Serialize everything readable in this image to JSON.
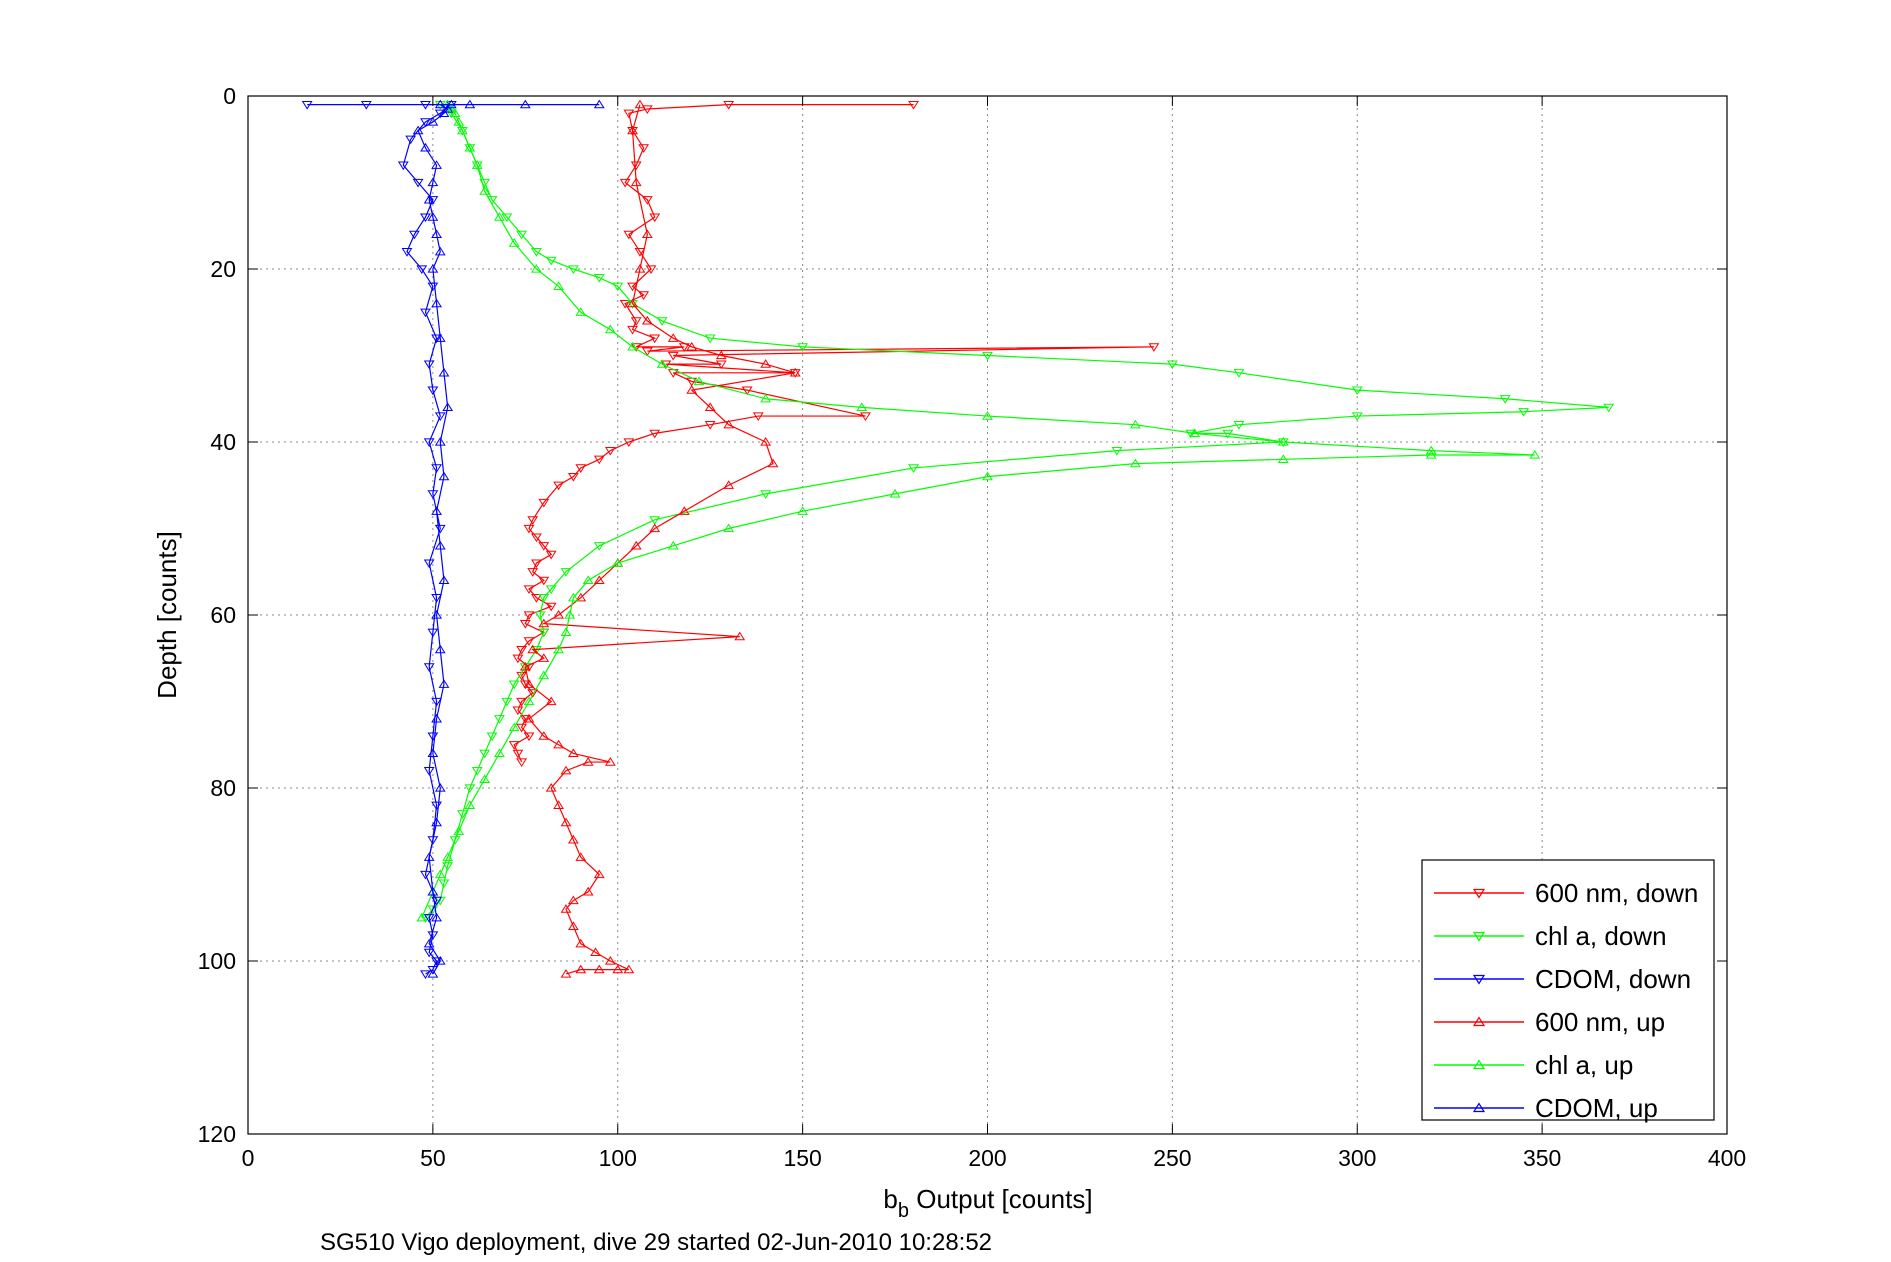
{
  "chart_data": {
    "type": "line",
    "title": "",
    "xlabel": "b",
    "xlabel_sub": "b",
    "xlabel_rest": " Output [counts]",
    "ylabel": "Depth [counts]",
    "caption": "SG510 Vigo deployment, dive 29 started 02-Jun-2010 10:28:52",
    "xlim": [
      0,
      400
    ],
    "ylim": [
      0,
      120
    ],
    "y_reversed": true,
    "grid": true,
    "legend_position": "bottom-right",
    "xticks": [
      "0",
      "50",
      "100",
      "150",
      "200",
      "250",
      "300",
      "350",
      "400"
    ],
    "yticks": [
      "0",
      "20",
      "40",
      "60",
      "80",
      "100",
      "120"
    ],
    "series": [
      {
        "name": "600 nm, down",
        "color": "#ff0000",
        "marker": "triangle-down",
        "x": [
          180,
          130,
          108,
          103,
          104,
          107,
          105,
          102,
          108,
          110,
          103,
          106,
          109,
          104,
          107,
          102,
          105,
          104,
          110,
          105,
          118,
          108,
          245,
          115,
          128,
          113,
          148,
          115,
          120,
          135,
          167,
          138,
          125,
          110,
          103,
          98,
          95,
          90,
          88,
          84,
          80,
          77,
          76,
          78,
          80,
          82,
          78,
          77,
          80,
          76,
          78,
          82,
          76,
          75,
          80,
          76,
          74,
          73,
          76,
          74,
          75,
          77,
          74,
          73,
          75,
          74,
          76,
          72,
          73,
          74
        ],
        "y": [
          1,
          1,
          1.5,
          2,
          4,
          6,
          8,
          10,
          12,
          14,
          16,
          18,
          20,
          22,
          23,
          24,
          26,
          27,
          28,
          29,
          29,
          29.5,
          29,
          30,
          31,
          31,
          32,
          32,
          33,
          34,
          37,
          37,
          38,
          39,
          40,
          41,
          42,
          43,
          44,
          45,
          47,
          49,
          50,
          51,
          52,
          53,
          54,
          55,
          56,
          57,
          58,
          59,
          60,
          61,
          62,
          63,
          64,
          65,
          66,
          67,
          68,
          69,
          70,
          71,
          72,
          73,
          74,
          75,
          76,
          77
        ]
      },
      {
        "name": "chl a, down",
        "color": "#00ff00",
        "marker": "triangle-down",
        "x": [
          52,
          55,
          58,
          60,
          62,
          64,
          66,
          70,
          74,
          78,
          82,
          88,
          95,
          100,
          104,
          112,
          125,
          150,
          200,
          250,
          268,
          300,
          340,
          368,
          345,
          300,
          268,
          255,
          265,
          280,
          235,
          180,
          140,
          110,
          95,
          86,
          82,
          80,
          79,
          80,
          78,
          75,
          72,
          70,
          68,
          66,
          64,
          62,
          60,
          58,
          56,
          54,
          53,
          52,
          50,
          48
        ],
        "y": [
          1,
          2,
          4,
          6,
          8,
          10,
          12,
          14,
          16,
          18,
          19,
          20,
          21,
          22,
          24,
          26,
          28,
          29,
          30,
          31,
          32,
          34,
          35,
          36,
          36.5,
          37,
          38,
          39,
          39,
          40,
          41,
          43,
          46,
          49,
          52,
          55,
          57,
          58,
          60,
          62,
          64,
          66,
          68,
          70,
          72,
          74,
          76,
          78,
          80,
          83,
          86,
          89,
          91,
          93,
          94,
          95
        ]
      },
      {
        "name": "CDOM, down",
        "color": "#0000ff",
        "marker": "triangle-down",
        "x": [
          16,
          32,
          48,
          55,
          52,
          48,
          44,
          42,
          46,
          50,
          48,
          45,
          43,
          47,
          50,
          48,
          51,
          49,
          50,
          52,
          49,
          51,
          50,
          52,
          49,
          51,
          50,
          49,
          51,
          50,
          49,
          51,
          50,
          48,
          51,
          49,
          50,
          49,
          51,
          50,
          48
        ],
        "y": [
          1,
          1,
          1,
          1,
          2,
          3,
          5,
          8,
          10,
          12,
          14,
          16,
          18,
          20,
          22,
          25,
          28,
          31,
          34,
          37,
          40,
          43,
          46,
          50,
          54,
          58,
          62,
          66,
          70,
          74,
          78,
          82,
          86,
          90,
          93,
          95,
          97,
          99,
          100,
          101,
          101.5
        ]
      },
      {
        "name": "600 nm, up",
        "color": "#ff0000",
        "marker": "triangle-up",
        "x": [
          86,
          90,
          95,
          100,
          103,
          98,
          94,
          90,
          88,
          86,
          88,
          92,
          95,
          90,
          88,
          86,
          84,
          82,
          86,
          92,
          98,
          88,
          84,
          80,
          76,
          82,
          76,
          75,
          80,
          77,
          133,
          80,
          84,
          90,
          95,
          100,
          105,
          110,
          118,
          130,
          142,
          140,
          130,
          125,
          120,
          148,
          140,
          128,
          120,
          115,
          108,
          104,
          106,
          108,
          105,
          104,
          106
        ],
        "y": [
          101.5,
          101,
          101,
          101,
          101,
          100,
          99,
          98,
          96,
          94,
          93,
          92,
          90,
          88,
          86,
          84,
          82,
          80,
          78,
          77,
          77,
          76,
          75,
          74,
          72,
          70,
          68,
          66,
          65,
          64,
          62.5,
          61,
          60,
          58,
          56,
          54,
          52,
          50,
          48,
          45,
          42.5,
          40,
          38,
          36,
          34,
          32,
          31,
          30,
          29,
          28,
          26,
          24,
          20,
          16,
          10,
          4,
          1
        ]
      },
      {
        "name": "chl a, up",
        "color": "#00ff00",
        "marker": "triangle-up",
        "x": [
          47,
          50,
          52,
          54,
          57,
          60,
          64,
          68,
          72,
          76,
          80,
          84,
          86,
          87,
          88,
          92,
          100,
          115,
          130,
          150,
          175,
          200,
          240,
          280,
          320,
          348,
          320,
          280,
          256,
          240,
          200,
          166,
          140,
          122,
          112,
          104,
          98,
          90,
          84,
          78,
          72,
          68,
          64,
          62,
          60,
          58,
          57,
          56,
          55,
          54
        ],
        "y": [
          95,
          92,
          90,
          88,
          85,
          82,
          79,
          76,
          73,
          70,
          67,
          64,
          62,
          60,
          58,
          56,
          54,
          52,
          50,
          48,
          46,
          44,
          42.5,
          42,
          41.5,
          41.5,
          41,
          40,
          39,
          38,
          37,
          36,
          35,
          33,
          31,
          29,
          27,
          25,
          22,
          20,
          17,
          14,
          11,
          8,
          6,
          4,
          3,
          2,
          1.5,
          1
        ]
      },
      {
        "name": "CDOM, up",
        "color": "#0000ff",
        "marker": "triangle-up",
        "x": [
          50,
          52,
          49,
          51,
          50,
          49,
          51,
          52,
          50,
          51,
          53,
          52,
          51,
          53,
          52,
          51,
          53,
          52,
          54,
          53,
          52,
          51,
          50,
          52,
          51,
          50,
          49,
          50,
          51,
          48,
          46,
          50,
          53,
          54,
          52,
          55,
          60,
          75,
          95
        ],
        "y": [
          101.5,
          100,
          98,
          95,
          92,
          88,
          84,
          80,
          76,
          72,
          68,
          64,
          60,
          56,
          52,
          48,
          44,
          40,
          36,
          32,
          28,
          24,
          20,
          18,
          16,
          14,
          12,
          10,
          8,
          6,
          4,
          3,
          2,
          1.5,
          1,
          1,
          1,
          1,
          1
        ]
      }
    ]
  }
}
